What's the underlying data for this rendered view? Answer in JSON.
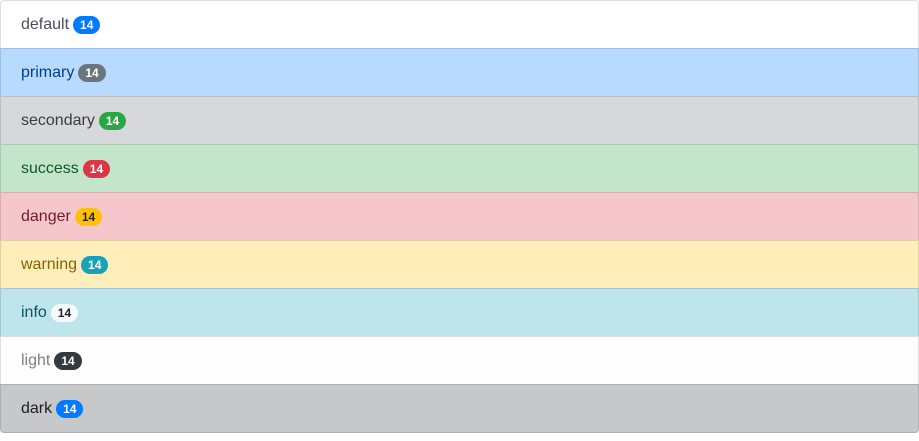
{
  "items": [
    {
      "label": "default",
      "badge": "14",
      "bg": "#ffffff",
      "color": "#495057",
      "badge_bg": "#007bff",
      "badge_color": "#ffffff"
    },
    {
      "label": "primary",
      "badge": "14",
      "bg": "#b8daff",
      "color": "#004085",
      "badge_bg": "#6c757d",
      "badge_color": "#ffffff"
    },
    {
      "label": "secondary",
      "badge": "14",
      "bg": "#d6d8db",
      "color": "#383d41",
      "badge_bg": "#28a745",
      "badge_color": "#ffffff"
    },
    {
      "label": "success",
      "badge": "14",
      "bg": "#c3e6cb",
      "color": "#155724",
      "badge_bg": "#dc3545",
      "badge_color": "#ffffff"
    },
    {
      "label": "danger",
      "badge": "14",
      "bg": "#f5c6cb",
      "color": "#721c24",
      "badge_bg": "#ffc107",
      "badge_color": "#212529"
    },
    {
      "label": "warning",
      "badge": "14",
      "bg": "#ffeeba",
      "color": "#856404",
      "badge_bg": "#17a2b8",
      "badge_color": "#ffffff"
    },
    {
      "label": "info",
      "badge": "14",
      "bg": "#bee5eb",
      "color": "#0c5460",
      "badge_bg": "#f8f9fa",
      "badge_color": "#212529"
    },
    {
      "label": "light",
      "badge": "14",
      "bg": "#fdfdfe",
      "color": "#818182",
      "badge_bg": "#343a40",
      "badge_color": "#ffffff"
    },
    {
      "label": "dark",
      "badge": "14",
      "bg": "#c6c8ca",
      "color": "#1b1e21",
      "badge_bg": "#007bff",
      "badge_color": "#ffffff"
    }
  ]
}
